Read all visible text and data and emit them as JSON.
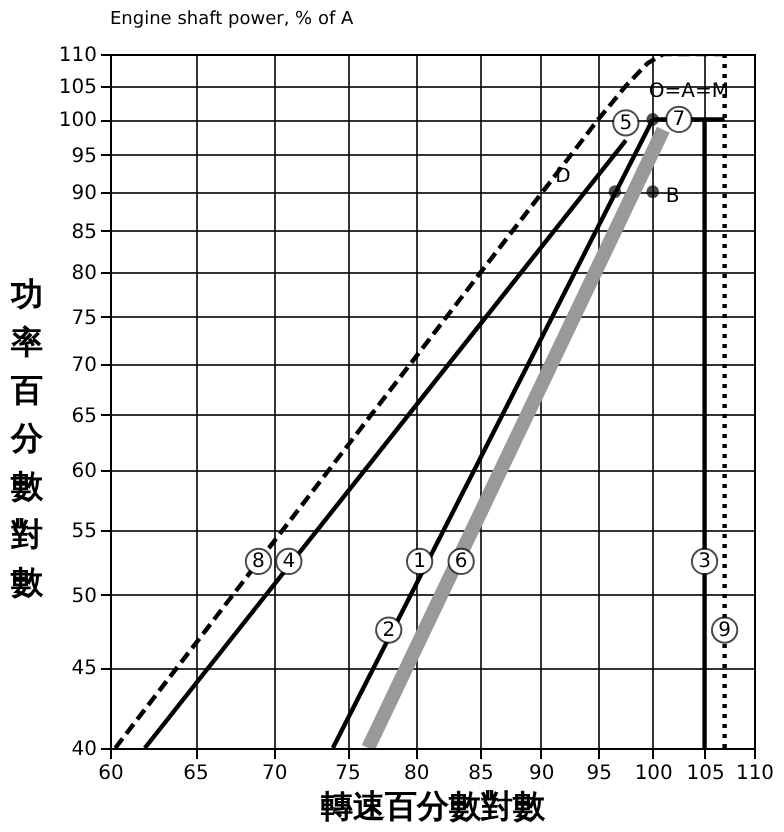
{
  "chart_data": {
    "type": "line",
    "title": "Engine shaft power, % of A",
    "xlabel": "轉速百分數對數",
    "ylabel": "功率百分數對數",
    "log": "xy",
    "grid": true,
    "xlim": [
      60,
      110
    ],
    "xticks": [
      60,
      65,
      70,
      75,
      80,
      85,
      90,
      95,
      100,
      105,
      110
    ],
    "ylim": [
      40,
      110
    ],
    "yticks": [
      40,
      45,
      50,
      55,
      60,
      65,
      70,
      75,
      80,
      85,
      90,
      95,
      100,
      105,
      110
    ],
    "series": [
      {
        "color": "#000000",
        "line_style": "dashed",
        "x": [
          60.3,
          95,
          97.5,
          99.5,
          101,
          107
        ],
        "values": [
          40,
          100,
          105,
          108.5,
          110,
          110
        ]
      },
      {
        "color": "#000000",
        "line_style": "solid",
        "x": [
          62,
          97.5
        ],
        "values": [
          40,
          97
        ]
      },
      {
        "color": "#000000",
        "line_style": "solid",
        "x": [
          74,
          100
        ],
        "values": [
          40,
          100
        ]
      },
      {
        "color": "#999999",
        "line_style": "solid",
        "x": [
          76.5,
          101
        ],
        "values": [
          40,
          98.5
        ]
      },
      {
        "color": "#000000",
        "line_style": "solid",
        "x": [
          105,
          105
        ],
        "values": [
          40,
          100
        ]
      },
      {
        "color": "#000000",
        "line_style": "solid",
        "x": [
          100,
          107
        ],
        "values": [
          100,
          100
        ]
      },
      {
        "color": "#000000",
        "line_style": "dotted",
        "x": [
          107,
          107
        ],
        "values": [
          40,
          110
        ]
      },
      {
        "type": "scatter",
        "marker": "circle",
        "color": "#000000",
        "x": [
          100,
          96.5,
          100
        ],
        "values": [
          100,
          90,
          90
        ]
      }
    ],
    "annotations": [
      {
        "text": "8",
        "x": 69,
        "y": 52.5
      },
      {
        "text": "4",
        "x": 71,
        "y": 52.5
      },
      {
        "text": "1",
        "x": 80.3,
        "y": 52.5
      },
      {
        "text": "6",
        "x": 83.5,
        "y": 52.5
      },
      {
        "text": "2",
        "x": 78,
        "y": 47.5
      },
      {
        "text": "3",
        "x": 105,
        "y": 52.5
      },
      {
        "text": "9",
        "x": 107,
        "y": 47.5
      },
      {
        "text": "7",
        "x": 102.5,
        "y": 100
      },
      {
        "text": "5",
        "x": 97.5,
        "y": 99.5
      },
      {
        "text": "B",
        "x": 100,
        "y": 90
      },
      {
        "text": "D",
        "x": 96.5,
        "y": 90
      },
      {
        "text": "O=A=M",
        "x": 100,
        "y": 100
      }
    ]
  }
}
